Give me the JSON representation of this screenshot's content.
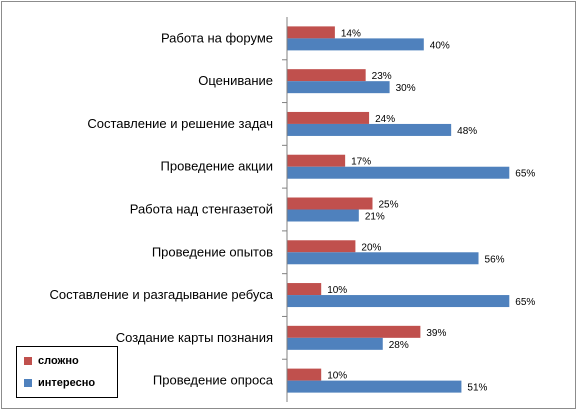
{
  "chart_data": {
    "type": "bar",
    "orientation": "horizontal",
    "categories": [
      "Работа на форуме",
      "Оценивание",
      "Составление и решение задач",
      "Проведение акции",
      "Работа над стенгазетой",
      "Проведение опытов",
      "Составление и разгадывание ребуса",
      "Создание карты познания",
      "Проведение опроса"
    ],
    "series": [
      {
        "name": "сложно",
        "color": "#C0504D",
        "values": [
          14,
          23,
          24,
          17,
          25,
          20,
          10,
          39,
          10
        ]
      },
      {
        "name": "интересно",
        "color": "#4F81BD",
        "values": [
          40,
          30,
          48,
          65,
          21,
          56,
          65,
          28,
          51
        ]
      }
    ],
    "value_suffix": "%",
    "xlim": [
      0,
      80
    ],
    "grid": false,
    "legend_position": "bottom-left"
  }
}
